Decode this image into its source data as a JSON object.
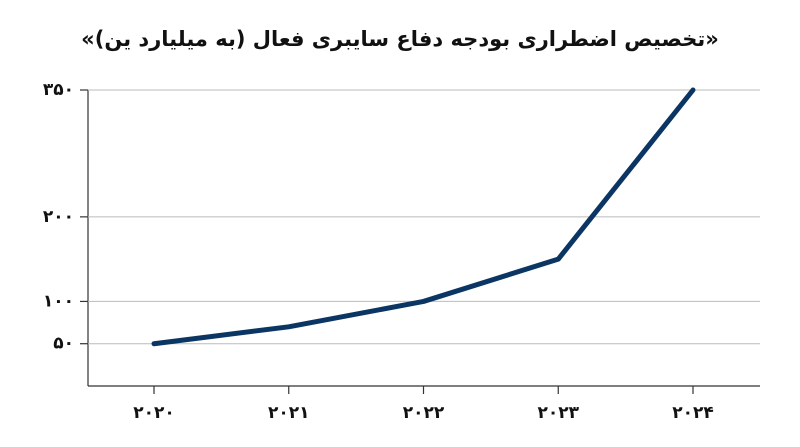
{
  "chart_data": {
    "type": "line",
    "title": "«تخصیص اضطراری بودجه دفاع سایبری فعال (به میلیارد ین)»",
    "categories": [
      "۲۰۲۰",
      "۲۰۲۱",
      "۲۰۲۲",
      "۲۰۲۳",
      "۲۰۲۴"
    ],
    "series": [
      {
        "name": "بودجه دفاع سایبری فعال",
        "color": "#0b3563",
        "values": [
          50,
          70,
          100,
          150,
          350
        ]
      }
    ],
    "ylim": [
      0,
      350
    ],
    "yticks": [
      {
        "value": 50,
        "label": "۵۰"
      },
      {
        "value": 100,
        "label": "۱۰۰"
      },
      {
        "value": 200,
        "label": "۲۰۰"
      },
      {
        "value": 350,
        "label": "۳۵۰"
      }
    ],
    "grid": true
  }
}
